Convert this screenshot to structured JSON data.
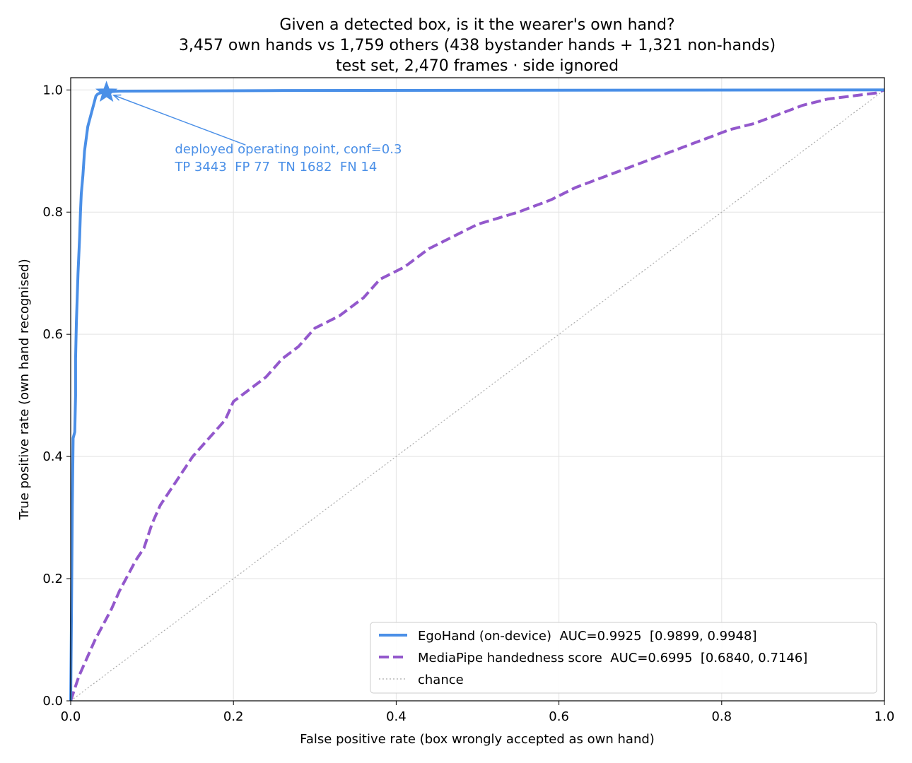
{
  "chart_data": {
    "type": "line",
    "title": [
      "Given a detected box, is it the wearer's own hand?",
      "3,457 own hands  vs  1,759 others (438 bystander hands + 1,321 non-hands)",
      "test set, 2,470 frames · side ignored"
    ],
    "xlabel": "False positive rate (box wrongly accepted as own hand)",
    "ylabel": "True positive rate (own hand recognised)",
    "xlim": [
      0,
      1
    ],
    "ylim": [
      0,
      1.02
    ],
    "x_ticks": [
      0,
      0.2,
      0.4,
      0.6,
      0.8,
      1.0
    ],
    "y_ticks": [
      0,
      0.2,
      0.4,
      0.6,
      0.8,
      1.0
    ],
    "x_tick_labels": [
      "0.0",
      "0.2",
      "0.4",
      "0.6",
      "0.8",
      "1.0"
    ],
    "y_tick_labels": [
      "0.0",
      "0.2",
      "0.4",
      "0.6",
      "0.8",
      "1.0"
    ],
    "grid": true,
    "legend_position": "lower-right",
    "series": [
      {
        "name": "EgoHand (on-device)  AUC=0.9925  [0.9899, 0.9948]",
        "color": "#4a8fe7",
        "style": "solid",
        "points": [
          [
            0,
            0
          ],
          [
            0.001,
            0.15
          ],
          [
            0.002,
            0.32
          ],
          [
            0.003,
            0.43
          ],
          [
            0.005,
            0.44
          ],
          [
            0.006,
            0.5
          ],
          [
            0.006,
            0.56
          ],
          [
            0.007,
            0.62
          ],
          [
            0.008,
            0.66
          ],
          [
            0.009,
            0.7
          ],
          [
            0.01,
            0.73
          ],
          [
            0.011,
            0.76
          ],
          [
            0.012,
            0.8
          ],
          [
            0.013,
            0.83
          ],
          [
            0.015,
            0.86
          ],
          [
            0.016,
            0.88
          ],
          [
            0.017,
            0.9
          ],
          [
            0.019,
            0.92
          ],
          [
            0.021,
            0.94
          ],
          [
            0.023,
            0.95
          ],
          [
            0.025,
            0.96
          ],
          [
            0.027,
            0.97
          ],
          [
            0.029,
            0.98
          ],
          [
            0.031,
            0.99
          ],
          [
            0.033,
            0.993
          ],
          [
            0.036,
            0.995
          ],
          [
            0.04,
            0.996
          ],
          [
            0.045,
            0.997
          ],
          [
            0.06,
            0.998
          ],
          [
            0.26,
            0.999
          ],
          [
            1.0,
            1.0
          ]
        ]
      },
      {
        "name": "MediaPipe handedness score  AUC=0.6995  [0.6840, 0.7146]",
        "color": "#9358cc",
        "style": "dashed",
        "points": [
          [
            0,
            0
          ],
          [
            0.01,
            0.04
          ],
          [
            0.02,
            0.07
          ],
          [
            0.03,
            0.1
          ],
          [
            0.04,
            0.125
          ],
          [
            0.05,
            0.15
          ],
          [
            0.06,
            0.18
          ],
          [
            0.07,
            0.205
          ],
          [
            0.08,
            0.23
          ],
          [
            0.09,
            0.25
          ],
          [
            0.1,
            0.29
          ],
          [
            0.11,
            0.32
          ],
          [
            0.13,
            0.36
          ],
          [
            0.15,
            0.4
          ],
          [
            0.17,
            0.43
          ],
          [
            0.19,
            0.46
          ],
          [
            0.2,
            0.49
          ],
          [
            0.22,
            0.51
          ],
          [
            0.24,
            0.53
          ],
          [
            0.26,
            0.56
          ],
          [
            0.28,
            0.58
          ],
          [
            0.3,
            0.61
          ],
          [
            0.33,
            0.63
          ],
          [
            0.36,
            0.66
          ],
          [
            0.38,
            0.69
          ],
          [
            0.41,
            0.71
          ],
          [
            0.44,
            0.74
          ],
          [
            0.47,
            0.76
          ],
          [
            0.5,
            0.78
          ],
          [
            0.55,
            0.8
          ],
          [
            0.59,
            0.82
          ],
          [
            0.62,
            0.84
          ],
          [
            0.66,
            0.86
          ],
          [
            0.7,
            0.88
          ],
          [
            0.74,
            0.9
          ],
          [
            0.78,
            0.92
          ],
          [
            0.81,
            0.935
          ],
          [
            0.84,
            0.945
          ],
          [
            0.87,
            0.96
          ],
          [
            0.9,
            0.975
          ],
          [
            0.93,
            0.985
          ],
          [
            0.96,
            0.99
          ],
          [
            0.99,
            0.995
          ],
          [
            1.0,
            1.0
          ]
        ]
      },
      {
        "name": "chance",
        "color": "#aaaaaa",
        "style": "dotted",
        "points": [
          [
            0,
            0
          ],
          [
            1,
            1
          ]
        ]
      }
    ],
    "annotation": {
      "marker": "star",
      "point": [
        0.044,
        0.996
      ],
      "text_anchor_data": [
        0.128,
        0.896
      ],
      "lines": [
        "deployed operating point, conf=0.3",
        "TP 3443  FP 77  TN 1682  FN 14"
      ],
      "color": "#4a8fe7"
    }
  }
}
